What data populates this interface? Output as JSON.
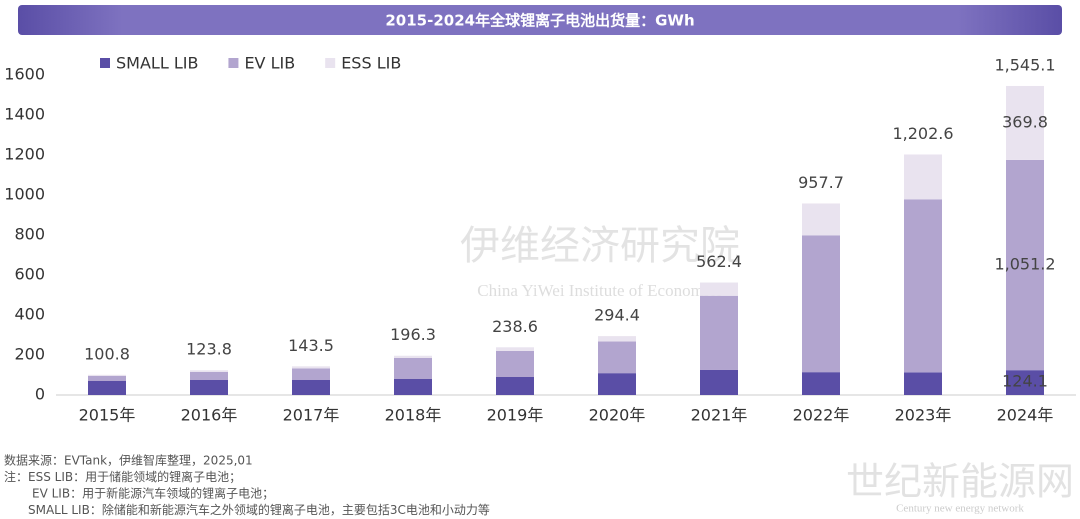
{
  "chart_data": {
    "type": "stacked_bar",
    "title": "2015-2024年全球锂离子电池出货量：GWh",
    "categories": [
      "2015年",
      "2016年",
      "2017年",
      "2018年",
      "2019年",
      "2020年",
      "2021年",
      "2022年",
      "2023年",
      "2024年"
    ],
    "series": [
      {
        "name": "SMALL LIB",
        "color": "#5a4ea6",
        "values": [
          70,
          75,
          75,
          80,
          90,
          109.2,
          125.1,
          114.2,
          113.2,
          124.1
        ],
        "value_labels": [
          null,
          null,
          null,
          null,
          null,
          null,
          null,
          null,
          null,
          "124.1"
        ]
      },
      {
        "name": "EV LIB",
        "color": "#b2a5cf",
        "values": [
          25,
          40,
          58,
          105,
          130,
          158.2,
          371.0,
          684.2,
          865.2,
          1051.2
        ],
        "value_labels": [
          null,
          null,
          null,
          null,
          null,
          null,
          null,
          null,
          null,
          "1,051.2"
        ]
      },
      {
        "name": "ESS LIB",
        "color": "#e9e3ef",
        "values": [
          5.8,
          8.8,
          10.5,
          11.3,
          18.6,
          27.0,
          66.3,
          159.3,
          224.2,
          369.8
        ],
        "value_labels": [
          null,
          null,
          null,
          null,
          null,
          null,
          null,
          null,
          null,
          "369.8"
        ]
      }
    ],
    "totals": [
      100.8,
      123.8,
      143.5,
      196.3,
      238.6,
      294.4,
      562.4,
      957.7,
      1202.6,
      1545.1
    ],
    "total_labels": [
      "100.8",
      "123.8",
      "143.5",
      "196.3",
      "238.6",
      "294.4",
      "562.4",
      "957.7",
      "1,202.6",
      "1,545.1"
    ],
    "ylim": [
      0,
      1600
    ],
    "yticks": [
      0,
      200,
      400,
      600,
      800,
      1000,
      1200,
      1400,
      1600
    ],
    "grid": false,
    "legend": "top-left",
    "notes": [
      "数据来源：EVTank，伊维智库整理，2025,01",
      "注：ESS LIB：用于储能领域的锂离子电池；",
      "EV LIB：用于新能源汽车领域的锂离子电池；",
      "SMALL LIB：除储能和新能源汽车之外领域的锂离子电池，主要包括3C电池和小动力等"
    ],
    "watermarks": [
      "伊维经济研究院",
      "China YiWei Institute of Economics",
      "世纪新能源网",
      "Century new energy network"
    ]
  }
}
